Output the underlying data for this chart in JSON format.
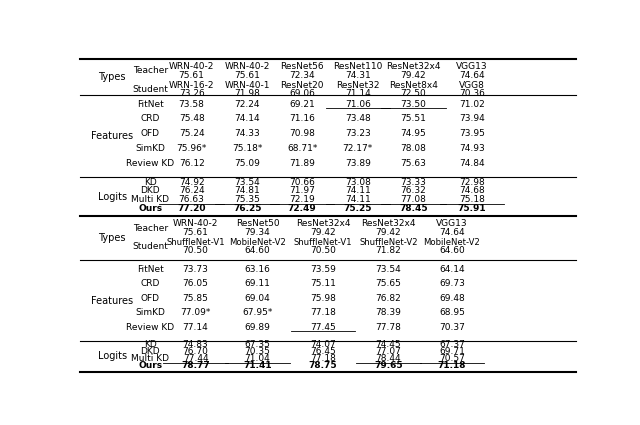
{
  "top_teacher_names": [
    "WRN-40-2",
    "WRN-40-2",
    "ResNet56",
    "ResNet110",
    "ResNet32x4",
    "VGG13"
  ],
  "top_teacher_scores": [
    "75.61",
    "75.61",
    "72.34",
    "74.31",
    "79.42",
    "74.64"
  ],
  "top_student_names": [
    "WRN-16-2",
    "WRN-40-1",
    "ResNet20",
    "ResNet32",
    "ResNet8x4",
    "VGG8"
  ],
  "top_student_scores": [
    "73.26",
    "71.98",
    "69.06",
    "71.14",
    "72.50",
    "70.36"
  ],
  "top_features_data": [
    [
      "73.58",
      "72.24",
      "69.21",
      "71.06",
      "73.50",
      "71.02"
    ],
    [
      "75.48",
      "74.14",
      "71.16",
      "73.48",
      "75.51",
      "73.94"
    ],
    [
      "75.24",
      "74.33",
      "70.98",
      "73.23",
      "74.95",
      "73.95"
    ],
    [
      "75.96*",
      "75.18*",
      "68.71*",
      "72.17*",
      "78.08",
      "74.93"
    ],
    [
      "76.12",
      "75.09",
      "71.89",
      "73.89",
      "75.63",
      "74.84"
    ]
  ],
  "top_features_underline": [
    [
      3,
      4
    ],
    [],
    [],
    [],
    []
  ],
  "top_logits_data": [
    [
      "74.92",
      "73.54",
      "70.66",
      "73.08",
      "73.33",
      "72.98"
    ],
    [
      "76.24",
      "74.81",
      "71.97",
      "74.11",
      "76.32",
      "74.68"
    ],
    [
      "76.63",
      "75.35",
      "72.19",
      "74.11",
      "77.08",
      "75.18"
    ],
    [
      "77.20",
      "76.25",
      "72.49",
      "75.25",
      "78.45",
      "75.91"
    ]
  ],
  "top_logits_underline": [
    [],
    [],
    [
      0,
      1,
      2,
      3,
      4,
      5
    ],
    []
  ],
  "bot_teacher_names": [
    "WRN-40-2",
    "ResNet50",
    "ResNet32x4",
    "ResNet32x4",
    "VGG13"
  ],
  "bot_teacher_scores": [
    "75.61",
    "79.34",
    "79.42",
    "79.42",
    "74.64"
  ],
  "bot_student_names": [
    "ShuffleNet-V1",
    "MobileNet-V2",
    "ShuffleNet-V1",
    "ShuffleNet-V2",
    "MobileNet-V2"
  ],
  "bot_student_scores": [
    "70.50",
    "64.60",
    "70.50",
    "71.82",
    "64.60"
  ],
  "bot_features_data": [
    [
      "73.73",
      "63.16",
      "73.59",
      "73.54",
      "64.14"
    ],
    [
      "76.05",
      "69.11",
      "75.11",
      "75.65",
      "69.73"
    ],
    [
      "75.85",
      "69.04",
      "75.98",
      "76.82",
      "69.48"
    ],
    [
      "77.09*",
      "67.95*",
      "77.18",
      "78.39",
      "68.95"
    ],
    [
      "77.14",
      "69.89",
      "77.45",
      "77.78",
      "70.37"
    ]
  ],
  "bot_features_underline": [
    [],
    [],
    [],
    [],
    [
      2
    ]
  ],
  "bot_logits_data": [
    [
      "74.83",
      "67.35",
      "74.07",
      "74.45",
      "67.37"
    ],
    [
      "76.70",
      "70.35",
      "76.45",
      "77.07",
      "69.71"
    ],
    [
      "77.44",
      "71.04",
      "77.18",
      "78.44",
      "70.57"
    ],
    [
      "78.77",
      "71.41",
      "78.75",
      "79.65",
      "71.18"
    ]
  ],
  "bot_logits_underline": [
    [],
    [],
    [
      0,
      1,
      3,
      4
    ],
    []
  ],
  "features_methods": [
    "FitNet",
    "CRD",
    "OFD",
    "SimKD",
    "Review KD"
  ],
  "logits_methods": [
    "KD",
    "DKD",
    "Multi KD",
    "Ours"
  ]
}
